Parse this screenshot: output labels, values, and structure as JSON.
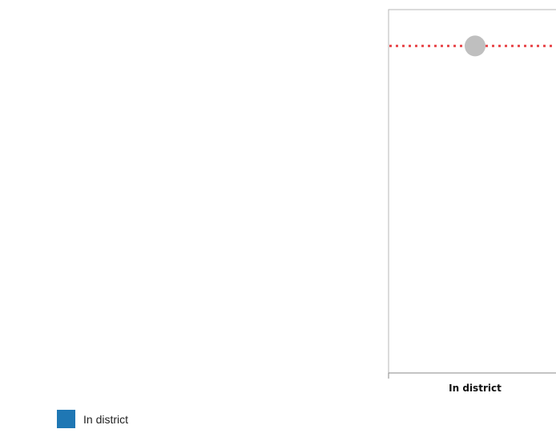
{
  "chart_data": {
    "type": "scatter",
    "categories": [
      "In district"
    ],
    "series": [
      {
        "name": "In district",
        "color": "#1f77b4",
        "values": [
          null
        ]
      }
    ],
    "reference_point": {
      "category": "In district",
      "value": 90,
      "color": "#bfbfbf"
    },
    "reference_line": {
      "value": 90,
      "style": "dotted",
      "color": "#e8474b"
    },
    "ylim": [
      0,
      100
    ],
    "grid": false,
    "legend": {
      "position": "bottom-left",
      "label": "In district"
    }
  }
}
